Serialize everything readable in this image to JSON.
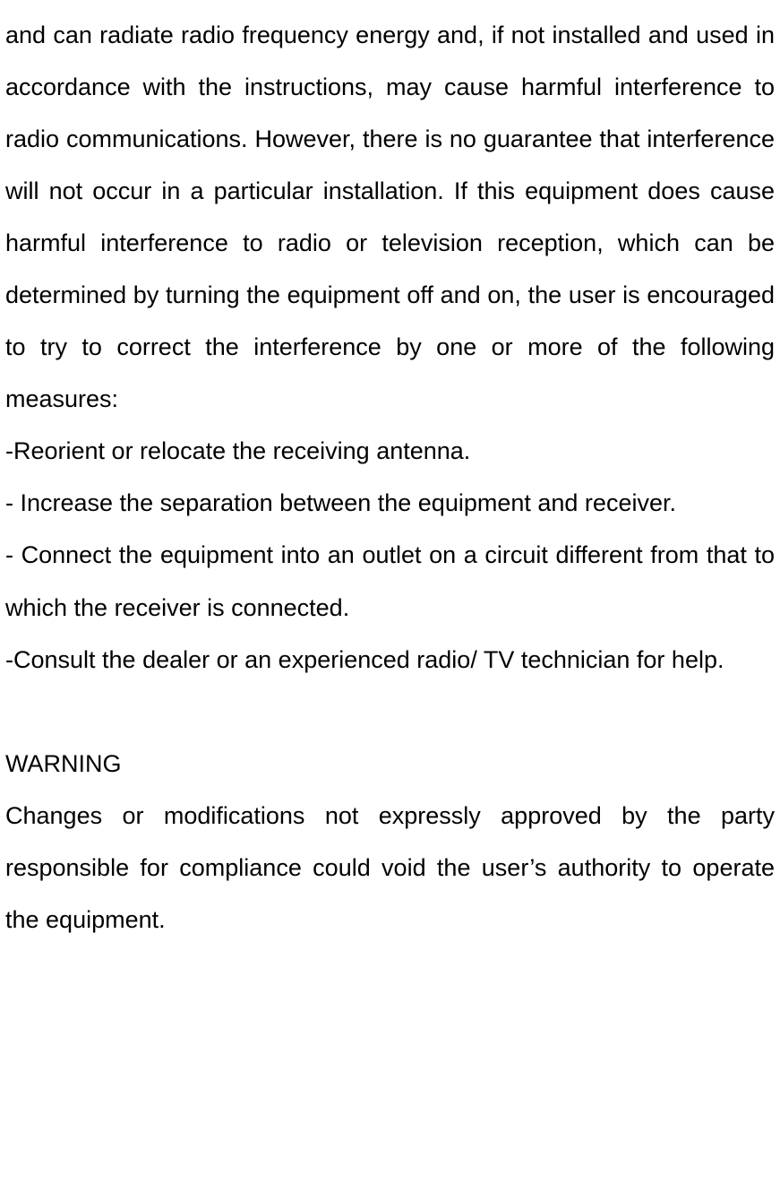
{
  "typography": {
    "font_family": "Verdana, Geneva, sans-serif",
    "font_size_pt": 20,
    "line_height": 2.15,
    "text_color": "#000000",
    "background_color": "#ffffff",
    "text_align": "justify"
  },
  "paragraphs": {
    "intro": "and can radiate radio frequency energy and, if not installed and used in accordance with the instructions, may cause harmful interference to radio communications. However, there is no guarantee that interference will not occur in a particular installation. If this equipment does cause harmful interference to radio or television reception, which can be determined by turning the equipment off and on, the user is encouraged to try to correct the interference by one or more of the following measures:"
  },
  "bullets": {
    "b1": "-Reorient or relocate the receiving antenna.",
    "b2": "- Increase the separation between the equipment and receiver.",
    "b3": "- Connect the equipment into an outlet on a circuit different from that to which the receiver is connected.",
    "b4": "-Consult the dealer or an experienced radio/ TV technician for help."
  },
  "warning": {
    "heading": "WARNING",
    "body": "Changes or modifications not expressly approved by the party responsible for compliance could void the user’s authority to operate the equipment."
  }
}
